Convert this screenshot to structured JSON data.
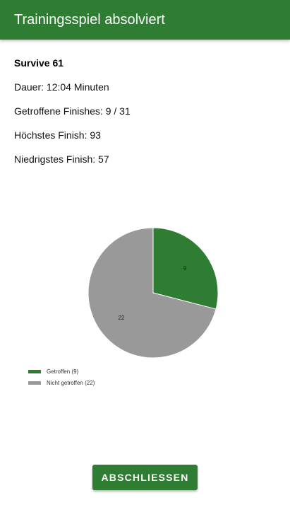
{
  "appbar": {
    "title": "Trainingsspiel absolviert"
  },
  "summary": {
    "game_name": "Survive 61",
    "duration": "Dauer: 12:04 Minuten",
    "finishes_hit": "Getroffene Finishes: 9 / 31",
    "highest_finish": "Höchstes Finish: 93",
    "lowest_finish": "Niedrigstes Finish: 57"
  },
  "chart_data": {
    "type": "pie",
    "categories": [
      "Getroffen (9)",
      "Nicht getroffen (22)"
    ],
    "values": [
      9,
      22
    ],
    "labels": [
      "9",
      "22"
    ],
    "colors": [
      "#2e7d32",
      "#999999"
    ],
    "legend_position": "bottom-left"
  },
  "actions": {
    "finish_label": "ABSCHLIESSEN"
  }
}
